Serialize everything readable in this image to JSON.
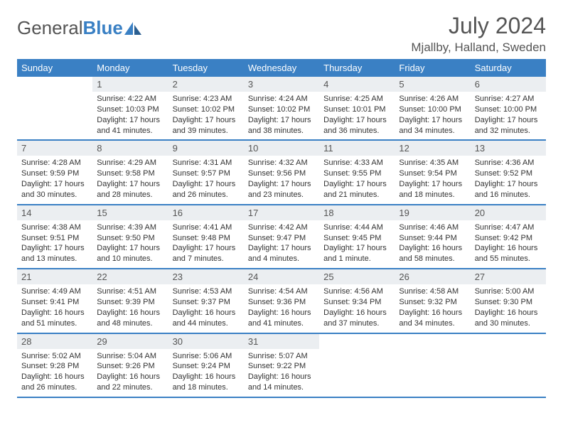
{
  "brand": {
    "part1": "General",
    "part2": "Blue"
  },
  "title": "July 2024",
  "location": "Mjallby, Halland, Sweden",
  "colors": {
    "accent": "#3a80c4",
    "header_text": "#ffffff",
    "daynum_bg": "#ebeef1",
    "body_text": "#333333",
    "muted_text": "#555555",
    "page_bg": "#ffffff"
  },
  "typography": {
    "month_title_fontsize": 32,
    "location_fontsize": 17,
    "dayheader_fontsize": 13,
    "daynum_fontsize": 13,
    "daytext_fontsize": 11
  },
  "calendar": {
    "type": "table",
    "day_headers": [
      "Sunday",
      "Monday",
      "Tuesday",
      "Wednesday",
      "Thursday",
      "Friday",
      "Saturday"
    ],
    "first_weekday_index": 1,
    "days": [
      {
        "n": 1,
        "sunrise": "4:22 AM",
        "sunset": "10:03 PM",
        "daylight": "17 hours and 41 minutes."
      },
      {
        "n": 2,
        "sunrise": "4:23 AM",
        "sunset": "10:02 PM",
        "daylight": "17 hours and 39 minutes."
      },
      {
        "n": 3,
        "sunrise": "4:24 AM",
        "sunset": "10:02 PM",
        "daylight": "17 hours and 38 minutes."
      },
      {
        "n": 4,
        "sunrise": "4:25 AM",
        "sunset": "10:01 PM",
        "daylight": "17 hours and 36 minutes."
      },
      {
        "n": 5,
        "sunrise": "4:26 AM",
        "sunset": "10:00 PM",
        "daylight": "17 hours and 34 minutes."
      },
      {
        "n": 6,
        "sunrise": "4:27 AM",
        "sunset": "10:00 PM",
        "daylight": "17 hours and 32 minutes."
      },
      {
        "n": 7,
        "sunrise": "4:28 AM",
        "sunset": "9:59 PM",
        "daylight": "17 hours and 30 minutes."
      },
      {
        "n": 8,
        "sunrise": "4:29 AM",
        "sunset": "9:58 PM",
        "daylight": "17 hours and 28 minutes."
      },
      {
        "n": 9,
        "sunrise": "4:31 AM",
        "sunset": "9:57 PM",
        "daylight": "17 hours and 26 minutes."
      },
      {
        "n": 10,
        "sunrise": "4:32 AM",
        "sunset": "9:56 PM",
        "daylight": "17 hours and 23 minutes."
      },
      {
        "n": 11,
        "sunrise": "4:33 AM",
        "sunset": "9:55 PM",
        "daylight": "17 hours and 21 minutes."
      },
      {
        "n": 12,
        "sunrise": "4:35 AM",
        "sunset": "9:54 PM",
        "daylight": "17 hours and 18 minutes."
      },
      {
        "n": 13,
        "sunrise": "4:36 AM",
        "sunset": "9:52 PM",
        "daylight": "17 hours and 16 minutes."
      },
      {
        "n": 14,
        "sunrise": "4:38 AM",
        "sunset": "9:51 PM",
        "daylight": "17 hours and 13 minutes."
      },
      {
        "n": 15,
        "sunrise": "4:39 AM",
        "sunset": "9:50 PM",
        "daylight": "17 hours and 10 minutes."
      },
      {
        "n": 16,
        "sunrise": "4:41 AM",
        "sunset": "9:48 PM",
        "daylight": "17 hours and 7 minutes."
      },
      {
        "n": 17,
        "sunrise": "4:42 AM",
        "sunset": "9:47 PM",
        "daylight": "17 hours and 4 minutes."
      },
      {
        "n": 18,
        "sunrise": "4:44 AM",
        "sunset": "9:45 PM",
        "daylight": "17 hours and 1 minute."
      },
      {
        "n": 19,
        "sunrise": "4:46 AM",
        "sunset": "9:44 PM",
        "daylight": "16 hours and 58 minutes."
      },
      {
        "n": 20,
        "sunrise": "4:47 AM",
        "sunset": "9:42 PM",
        "daylight": "16 hours and 55 minutes."
      },
      {
        "n": 21,
        "sunrise": "4:49 AM",
        "sunset": "9:41 PM",
        "daylight": "16 hours and 51 minutes."
      },
      {
        "n": 22,
        "sunrise": "4:51 AM",
        "sunset": "9:39 PM",
        "daylight": "16 hours and 48 minutes."
      },
      {
        "n": 23,
        "sunrise": "4:53 AM",
        "sunset": "9:37 PM",
        "daylight": "16 hours and 44 minutes."
      },
      {
        "n": 24,
        "sunrise": "4:54 AM",
        "sunset": "9:36 PM",
        "daylight": "16 hours and 41 minutes."
      },
      {
        "n": 25,
        "sunrise": "4:56 AM",
        "sunset": "9:34 PM",
        "daylight": "16 hours and 37 minutes."
      },
      {
        "n": 26,
        "sunrise": "4:58 AM",
        "sunset": "9:32 PM",
        "daylight": "16 hours and 34 minutes."
      },
      {
        "n": 27,
        "sunrise": "5:00 AM",
        "sunset": "9:30 PM",
        "daylight": "16 hours and 30 minutes."
      },
      {
        "n": 28,
        "sunrise": "5:02 AM",
        "sunset": "9:28 PM",
        "daylight": "16 hours and 26 minutes."
      },
      {
        "n": 29,
        "sunrise": "5:04 AM",
        "sunset": "9:26 PM",
        "daylight": "16 hours and 22 minutes."
      },
      {
        "n": 30,
        "sunrise": "5:06 AM",
        "sunset": "9:24 PM",
        "daylight": "16 hours and 18 minutes."
      },
      {
        "n": 31,
        "sunrise": "5:07 AM",
        "sunset": "9:22 PM",
        "daylight": "16 hours and 14 minutes."
      }
    ],
    "labels": {
      "sunrise": "Sunrise:",
      "sunset": "Sunset:",
      "daylight": "Daylight:"
    }
  }
}
